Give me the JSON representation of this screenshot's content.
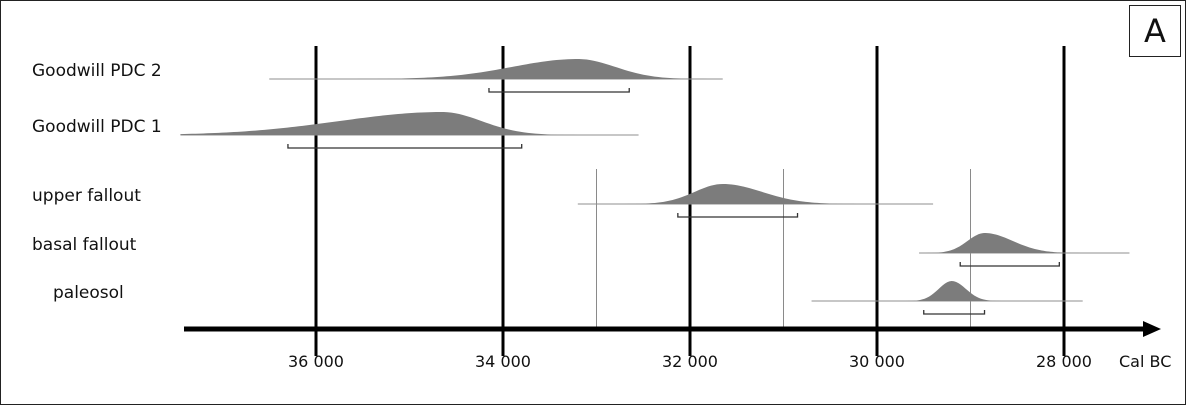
{
  "panel_label": "A",
  "chart_data": {
    "type": "area",
    "title": "",
    "xlabel": "Cal BC",
    "axis_direction": "decreasing to the right",
    "xlim": [
      37450,
      27700
    ],
    "xticks": [
      {
        "value": 36000,
        "label": "36 000"
      },
      {
        "value": 34000,
        "label": "34 000"
      },
      {
        "value": 32000,
        "label": "32 000"
      },
      {
        "value": 30000,
        "label": "30 000"
      },
      {
        "value": 28000,
        "label": "28 000"
      }
    ],
    "grid_major": [
      36000,
      34000,
      32000,
      30000,
      28000
    ],
    "grid_minor": [
      33000,
      31000,
      29000
    ],
    "series": [
      {
        "name": "Goodwill PDC 2",
        "range": [
          36500,
          31650
        ],
        "peak": 33200,
        "sd_left": 700,
        "sd_right": 400,
        "height": 1.0,
        "bracket": [
          34150,
          32650
        ]
      },
      {
        "name": "Goodwill PDC 1",
        "range": [
          37450,
          32550
        ],
        "peak": 34650,
        "sd_left": 1100,
        "sd_right": 420,
        "height": 1.15,
        "bracket": [
          36300,
          33800
        ]
      },
      {
        "name": "upper fallout",
        "range": [
          33200,
          29400
        ],
        "peak": 31650,
        "sd_left": 300,
        "sd_right": 420,
        "height": 1.0,
        "bracket": [
          32130,
          30850
        ]
      },
      {
        "name": "basal fallout",
        "range": [
          29550,
          27300
        ],
        "peak": 28850,
        "sd_left": 180,
        "sd_right": 300,
        "height": 1.0,
        "bracket": [
          29110,
          28050
        ]
      },
      {
        "name": "paleosol",
        "range": [
          30700,
          27800
        ],
        "peak": 29200,
        "sd_left": 140,
        "sd_right": 150,
        "height": 1.0,
        "bracket": [
          29500,
          28850
        ]
      }
    ]
  }
}
